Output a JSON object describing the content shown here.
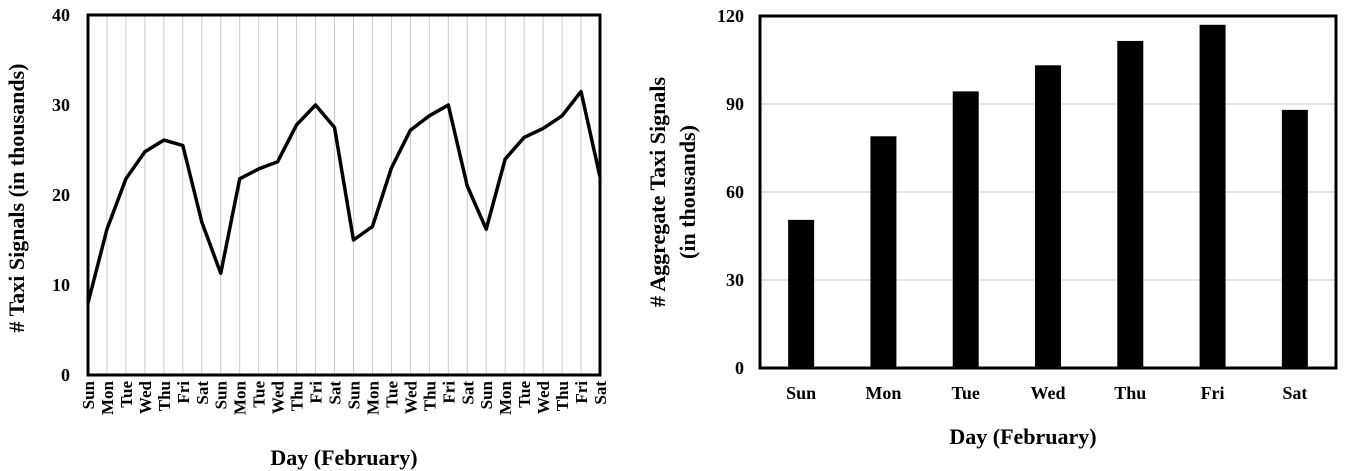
{
  "chart_data": [
    {
      "type": "line",
      "xlabel": "Day (February)",
      "ylabel": "# Taxi Signals (in thousands)",
      "ylim": [
        0,
        40
      ],
      "yticks": [
        "0",
        "10",
        "20",
        "30",
        "40"
      ],
      "grid": "vertical",
      "categories": [
        "Sun",
        "Mon",
        "Tue",
        "Wed",
        "Thu",
        "Fri",
        "Sat",
        "Sun",
        "Mon",
        "Tue",
        "Wed",
        "Thu",
        "Fri",
        "Sat",
        "Sun",
        "Mon",
        "Tue",
        "Wed",
        "Thu",
        "Fri",
        "Sat",
        "Sun",
        "Mon",
        "Tue",
        "Wed",
        "Thu",
        "Fri",
        "Sat"
      ],
      "values": [
        8.0,
        16.2,
        21.8,
        24.8,
        26.1,
        25.5,
        17.0,
        11.3,
        21.8,
        22.9,
        23.7,
        27.8,
        30.0,
        27.5,
        15.0,
        16.5,
        23.0,
        27.2,
        28.8,
        30.0,
        21.0,
        16.2,
        24.0,
        26.4,
        27.4,
        28.8,
        31.5,
        22.0
      ]
    },
    {
      "type": "bar",
      "xlabel": "Day (February)",
      "ylabel_lines": [
        "# Aggregate Taxi Signals",
        "(in thousands)"
      ],
      "ylim": [
        0,
        120
      ],
      "yticks": [
        "0",
        "30",
        "60",
        "90",
        "120"
      ],
      "grid": "horizontal",
      "categories": [
        "Sun",
        "Mon",
        "Tue",
        "Wed",
        "Thu",
        "Fri",
        "Sat"
      ],
      "values": [
        50.5,
        79.0,
        94.3,
        103.2,
        111.5,
        117.0,
        88.0
      ]
    }
  ]
}
